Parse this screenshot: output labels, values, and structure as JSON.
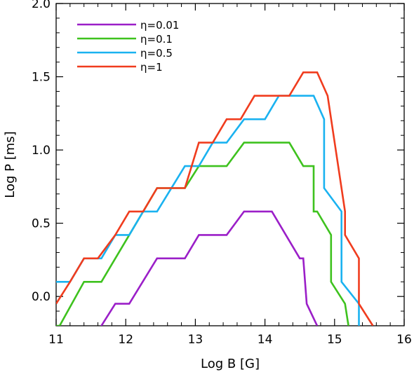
{
  "chart_data": {
    "type": "line",
    "step": true,
    "xlabel": "Log B [G]",
    "ylabel": "Log P [ms]",
    "xlim": [
      11,
      16
    ],
    "ylim": [
      -0.2,
      2.0
    ],
    "xticks": [
      11,
      12,
      13,
      14,
      15,
      16
    ],
    "xtick_labels": [
      "11",
      "12",
      "13",
      "14",
      "15",
      "16"
    ],
    "yticks": [
      0.0,
      0.5,
      1.0,
      1.5,
      2.0
    ],
    "ytick_labels": [
      "0.0",
      "0.5",
      "1.0",
      "1.5",
      "2.0"
    ],
    "legend_position": "top-left",
    "grid": false,
    "series": [
      {
        "name": "η=0.01",
        "color": "#9b1fc8",
        "x": [
          11.6,
          11.65,
          11.85,
          12.05,
          12.45,
          12.85,
          13.05,
          13.45,
          13.7,
          14.1,
          14.5,
          14.55,
          14.6,
          14.75
        ],
        "y": [
          -0.25,
          -0.2,
          -0.05,
          -0.05,
          0.26,
          0.26,
          0.42,
          0.42,
          0.58,
          0.58,
          0.26,
          0.26,
          -0.05,
          -0.2
        ]
      },
      {
        "name": "η=0.1",
        "color": "#3ec21e",
        "x": [
          11.0,
          11.05,
          11.4,
          11.65,
          12.05,
          12.45,
          12.85,
          13.05,
          13.45,
          13.7,
          14.35,
          14.55,
          14.7,
          14.7,
          14.75,
          14.95,
          14.95,
          15.15,
          15.2
        ],
        "y": [
          -0.2,
          -0.2,
          0.1,
          0.1,
          0.42,
          0.74,
          0.74,
          0.89,
          0.89,
          1.05,
          1.05,
          0.89,
          0.89,
          0.58,
          0.58,
          0.42,
          0.1,
          -0.05,
          -0.2
        ]
      },
      {
        "name": "η=0.5",
        "color": "#1ab2f0",
        "x": [
          11.0,
          11.05,
          11.2,
          11.2,
          11.4,
          11.65,
          11.85,
          12.05,
          12.25,
          12.45,
          12.85,
          13.05,
          13.25,
          13.45,
          13.7,
          14.0,
          14.2,
          14.7,
          14.85,
          14.85,
          15.1,
          15.1,
          15.35,
          15.35
        ],
        "y": [
          0.1,
          0.1,
          0.1,
          0.1,
          0.26,
          0.26,
          0.42,
          0.42,
          0.58,
          0.58,
          0.89,
          0.89,
          1.05,
          1.05,
          1.21,
          1.21,
          1.37,
          1.37,
          1.21,
          0.74,
          0.58,
          0.1,
          -0.05,
          -0.2
        ]
      },
      {
        "name": "η=1",
        "color": "#f03c1e",
        "x": [
          11.0,
          11.2,
          11.4,
          11.6,
          11.85,
          12.05,
          12.25,
          12.45,
          12.85,
          13.05,
          13.25,
          13.45,
          13.65,
          13.85,
          14.35,
          14.55,
          14.75,
          14.9,
          15.15,
          15.15,
          15.35,
          15.35,
          15.55
        ],
        "y": [
          -0.05,
          0.1,
          0.26,
          0.26,
          0.42,
          0.58,
          0.58,
          0.74,
          0.74,
          1.05,
          1.05,
          1.21,
          1.21,
          1.37,
          1.37,
          1.53,
          1.53,
          1.37,
          0.58,
          0.42,
          0.26,
          -0.05,
          -0.2
        ]
      }
    ]
  }
}
